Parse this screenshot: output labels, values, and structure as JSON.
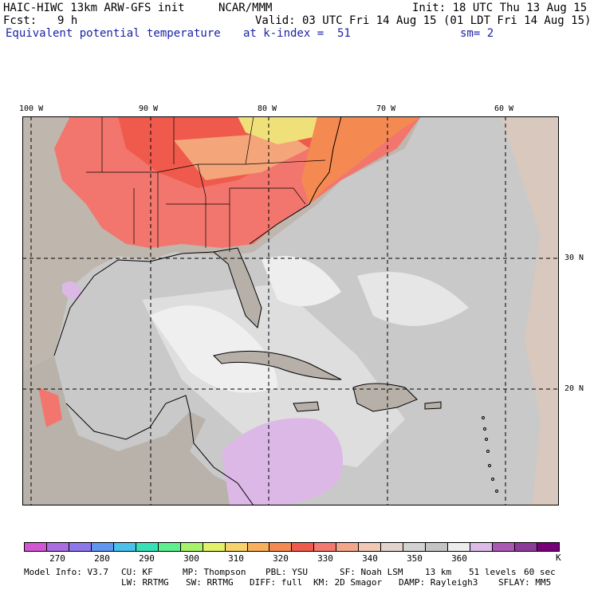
{
  "header": {
    "model": "HAIC-HIWC 13km ARW-GFS init",
    "org": "NCAR/MMM",
    "init": "Init: 18 UTC Thu 13 Aug 15",
    "fcst_label": "Fcst:",
    "fcst_value": "9 h",
    "valid": "Valid: 03 UTC Fri 14 Aug 15 (01 LDT Fri 14 Aug 15)",
    "field": "Equivalent potential temperature",
    "level": "at k-index =  51",
    "smooth": "sm= 2"
  },
  "map": {
    "lon_labels": [
      "100 W",
      "90 W",
      "80 W",
      "70 W",
      "60 W"
    ],
    "lat_labels": [
      "30 N",
      "20 N"
    ],
    "colors": {
      "ocean_gray": "#c8c8c8",
      "land_tan": "#bdb4ad",
      "warm_red": "#f2766d",
      "warm_orange": "#f4a67a",
      "light_pink": "#dcb8e6",
      "white": "#f0f0f0",
      "yellow": "#f0e07a"
    }
  },
  "colorbar": {
    "colors": [
      "#d255d2",
      "#aa6ee0",
      "#8c78ea",
      "#5f96f0",
      "#4ac0ea",
      "#38e0b8",
      "#5ef08e",
      "#a6f26a",
      "#e2f06a",
      "#f8d26a",
      "#f8b05e",
      "#f48a52",
      "#f05a4c",
      "#f27870",
      "#f4a68c",
      "#f0c8b4",
      "#e2d4cc",
      "#d2d2d2",
      "#c4c4c4",
      "#ececec",
      "#dcbce6",
      "#aa58b4",
      "#8c3c98",
      "#780078"
    ],
    "labels": [
      "270",
      "280",
      "290",
      "300",
      "310",
      "320",
      "330",
      "340",
      "350",
      "360"
    ],
    "unit": "K"
  },
  "footer": {
    "line1": [
      "Model Info: V3.7",
      "CU: KF",
      "MP: Thompson",
      "PBL: YSU",
      "SF: Noah LSM",
      "13 km",
      "51 levels",
      "60 sec"
    ],
    "line2": [
      "LW: RRTMG",
      "SW: RRTMG",
      "DIFF: full",
      "KM: 2D Smagor",
      "DAMP: Rayleigh3",
      "SFLAY: MM5"
    ]
  }
}
